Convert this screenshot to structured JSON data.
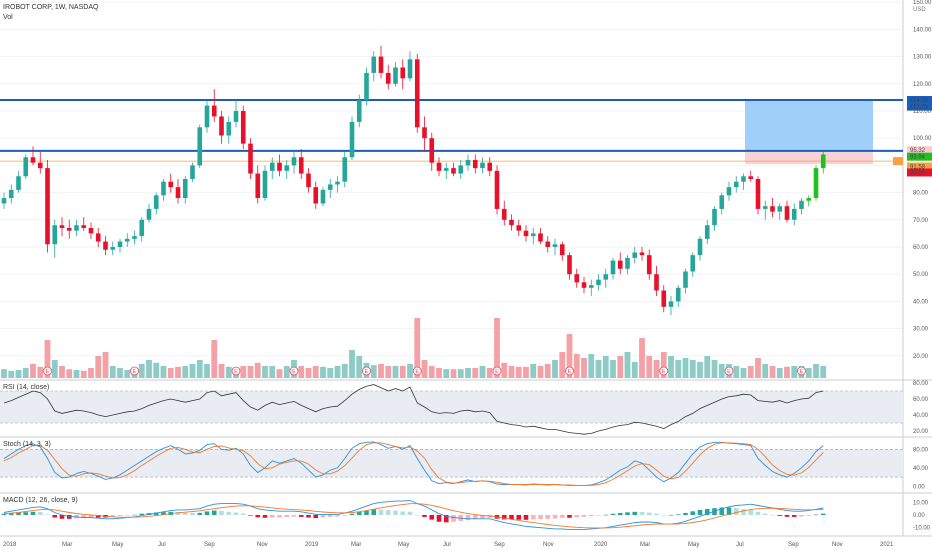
{
  "header": {
    "title": "IROBOT CORP, 1W, NASDAQ",
    "vol_label": "Vol",
    "rsi_label": "RSI (14, close)",
    "stoch_label": "Stoch (14, 3, 3)",
    "macd_label": "MACD (12, 26, close, 9)",
    "currency": "USD"
  },
  "colors": {
    "up": "#26a69a",
    "up_bright": "#21c021",
    "down": "#e8102a",
    "vol_up": "#8ccbc6",
    "vol_down": "#f3a1a6",
    "level_line": "#1a5eb8",
    "target_zone": "#8fc8f8",
    "stop_zone": "#f8cdd1",
    "earnings": "#e8455a"
  },
  "chart_data": [
    {
      "type": "candlestick",
      "title": "IROBOT CORP, 1W, NASDAQ",
      "ylabel": "USD",
      "ylim": [
        10,
        160
      ],
      "y_ticks": [
        20,
        30,
        40,
        50,
        60,
        70,
        80,
        90,
        100,
        110,
        120,
        130,
        140,
        150
      ],
      "x_ticks": [
        "2018",
        "Mar",
        "May",
        "Jul",
        "Sep",
        "Nov",
        "2019",
        "Mar",
        "May",
        "Jul",
        "Sep",
        "Nov",
        "2020",
        "Mar",
        "May",
        "Jul",
        "Sep",
        "Nov",
        "2021"
      ],
      "earnings_marker": "E",
      "horizontal_levels": [
        114.05,
        95.32
      ],
      "price_labels": [
        "114.05",
        "112.75",
        "95.32",
        "93.94",
        "91.58",
        "90.50"
      ],
      "ohlc": [
        [
          76,
          80,
          74,
          78
        ],
        [
          78,
          83,
          76,
          81
        ],
        [
          81,
          88,
          80,
          86
        ],
        [
          86,
          94,
          85,
          93
        ],
        [
          93,
          97,
          90,
          91
        ],
        [
          91,
          95,
          87,
          89
        ],
        [
          89,
          92,
          58,
          61
        ],
        [
          61,
          70,
          56,
          68
        ],
        [
          68,
          71,
          64,
          67
        ],
        [
          67,
          70,
          63,
          66
        ],
        [
          66,
          70,
          64,
          68
        ],
        [
          68,
          71,
          66,
          67
        ],
        [
          67,
          69,
          63,
          65
        ],
        [
          65,
          67,
          60,
          62
        ],
        [
          62,
          64,
          57,
          59
        ],
        [
          59,
          62,
          57,
          60
        ],
        [
          60,
          63,
          58,
          62
        ],
        [
          62,
          65,
          60,
          63
        ],
        [
          63,
          66,
          61,
          64
        ],
        [
          64,
          71,
          62,
          70
        ],
        [
          70,
          76,
          69,
          74
        ],
        [
          74,
          80,
          72,
          79
        ],
        [
          79,
          85,
          77,
          84
        ],
        [
          84,
          87,
          80,
          82
        ],
        [
          82,
          85,
          76,
          78
        ],
        [
          78,
          86,
          76,
          85
        ],
        [
          85,
          91,
          84,
          90
        ],
        [
          90,
          105,
          89,
          104
        ],
        [
          104,
          114,
          102,
          112
        ],
        [
          112,
          118,
          106,
          108
        ],
        [
          108,
          110,
          98,
          101
        ],
        [
          101,
          108,
          98,
          106
        ],
        [
          106,
          114,
          104,
          110
        ],
        [
          110,
          112,
          96,
          98
        ],
        [
          98,
          100,
          85,
          87
        ],
        [
          87,
          90,
          76,
          78
        ],
        [
          78,
          90,
          77,
          88
        ],
        [
          88,
          93,
          85,
          91
        ],
        [
          91,
          94,
          86,
          88
        ],
        [
          88,
          92,
          85,
          90
        ],
        [
          90,
          95,
          87,
          93
        ],
        [
          93,
          96,
          85,
          87
        ],
        [
          87,
          89,
          80,
          82
        ],
        [
          82,
          84,
          74,
          76
        ],
        [
          76,
          82,
          75,
          81
        ],
        [
          81,
          85,
          78,
          83
        ],
        [
          83,
          86,
          80,
          84
        ],
        [
          84,
          95,
          82,
          93
        ],
        [
          93,
          108,
          92,
          106
        ],
        [
          106,
          116,
          104,
          114
        ],
        [
          114,
          126,
          112,
          124
        ],
        [
          124,
          132,
          121,
          130
        ],
        [
          130,
          134,
          122,
          124
        ],
        [
          124,
          127,
          118,
          120
        ],
        [
          120,
          128,
          119,
          126
        ],
        [
          126,
          129,
          118,
          122
        ],
        [
          122,
          132,
          121,
          129
        ],
        [
          129,
          131,
          102,
          104
        ],
        [
          104,
          108,
          95,
          100
        ],
        [
          100,
          102,
          88,
          91
        ],
        [
          91,
          93,
          86,
          88
        ],
        [
          88,
          91,
          85,
          89
        ],
        [
          89,
          91,
          86,
          87
        ],
        [
          87,
          92,
          85,
          90
        ],
        [
          90,
          94,
          88,
          92
        ],
        [
          92,
          94,
          87,
          89
        ],
        [
          89,
          93,
          87,
          91
        ],
        [
          91,
          93,
          86,
          88
        ],
        [
          88,
          90,
          72,
          74
        ],
        [
          74,
          77,
          68,
          70
        ],
        [
          70,
          72,
          66,
          68
        ],
        [
          68,
          70,
          64,
          66
        ],
        [
          66,
          68,
          62,
          64
        ],
        [
          64,
          67,
          61,
          65
        ],
        [
          65,
          67,
          61,
          62
        ],
        [
          62,
          64,
          58,
          60
        ],
        [
          60,
          63,
          57,
          61
        ],
        [
          61,
          62,
          55,
          57
        ],
        [
          57,
          58,
          48,
          50
        ],
        [
          50,
          52,
          45,
          47
        ],
        [
          47,
          49,
          43,
          45
        ],
        [
          45,
          48,
          42,
          46
        ],
        [
          46,
          50,
          44,
          48
        ],
        [
          48,
          52,
          45,
          50
        ],
        [
          50,
          56,
          48,
          55
        ],
        [
          55,
          58,
          50,
          52
        ],
        [
          52,
          57,
          50,
          56
        ],
        [
          56,
          60,
          54,
          58
        ],
        [
          58,
          60,
          55,
          57
        ],
        [
          57,
          59,
          48,
          50
        ],
        [
          50,
          53,
          42,
          44
        ],
        [
          44,
          46,
          36,
          38
        ],
        [
          38,
          42,
          35,
          40
        ],
        [
          40,
          46,
          38,
          45
        ],
        [
          45,
          52,
          43,
          51
        ],
        [
          51,
          58,
          49,
          57
        ],
        [
          57,
          64,
          55,
          63
        ],
        [
          63,
          70,
          61,
          68
        ],
        [
          68,
          75,
          66,
          74
        ],
        [
          74,
          80,
          72,
          79
        ],
        [
          79,
          84,
          77,
          82
        ],
        [
          82,
          86,
          80,
          84
        ],
        [
          84,
          87,
          81,
          86
        ],
        [
          86,
          88,
          84,
          85
        ],
        [
          85,
          86,
          72,
          74
        ],
        [
          74,
          77,
          70,
          75
        ],
        [
          75,
          78,
          71,
          73
        ],
        [
          73,
          76,
          70,
          75
        ],
        [
          75,
          77,
          69,
          70
        ],
        [
          70,
          76,
          68,
          74
        ],
        [
          74,
          78,
          72,
          77
        ],
        [
          77,
          79,
          75,
          78
        ],
        [
          78,
          90,
          77,
          89
        ],
        [
          89,
          95,
          87,
          94
        ]
      ],
      "volume_ratio": [
        0.22,
        0.18,
        0.2,
        0.25,
        0.35,
        0.28,
        0.95,
        0.45,
        0.3,
        0.22,
        0.2,
        0.18,
        0.25,
        0.55,
        0.65,
        0.3,
        0.25,
        0.2,
        0.22,
        0.35,
        0.45,
        0.38,
        0.3,
        0.25,
        0.28,
        0.3,
        0.35,
        0.45,
        0.35,
        0.95,
        0.35,
        0.28,
        0.25,
        0.3,
        0.3,
        0.38,
        0.3,
        0.3,
        0.22,
        0.3,
        0.45,
        0.3,
        0.25,
        0.3,
        0.28,
        0.25,
        0.3,
        0.35,
        0.7,
        0.55,
        0.38,
        0.32,
        0.35,
        0.3,
        0.3,
        0.3,
        0.35,
        1.5,
        0.45,
        0.3,
        0.25,
        0.22,
        0.22,
        0.22,
        0.25,
        0.25,
        0.3,
        0.25,
        1.5,
        0.38,
        0.3,
        0.28,
        0.28,
        0.35,
        0.3,
        0.35,
        0.45,
        0.65,
        1.1,
        0.6,
        0.5,
        0.6,
        0.45,
        0.55,
        0.45,
        0.55,
        0.65,
        0.4,
        1.0,
        0.55,
        0.45,
        0.65,
        0.55,
        0.45,
        0.5,
        0.45,
        0.4,
        0.55,
        0.45,
        0.35,
        0.35,
        0.3,
        0.25,
        0.3,
        0.5,
        0.35,
        0.3,
        0.25,
        0.28,
        0.3,
        0.3,
        0.25,
        0.35,
        0.3
      ],
      "earnings_index": [
        6,
        18,
        32,
        40,
        50,
        57,
        68,
        78,
        91,
        100,
        110
      ]
    },
    {
      "type": "line",
      "title": "RSI (14, close)",
      "ylim": [
        15,
        80
      ],
      "y_ticks": [
        "80.00",
        "60.00",
        "40.00",
        "20.00"
      ],
      "bands": [
        70,
        30
      ],
      "values": [
        55,
        58,
        62,
        66,
        70,
        68,
        60,
        45,
        42,
        44,
        46,
        45,
        43,
        40,
        38,
        40,
        42,
        44,
        45,
        48,
        52,
        55,
        58,
        60,
        58,
        56,
        58,
        60,
        68,
        70,
        64,
        66,
        68,
        58,
        50,
        46,
        52,
        56,
        53,
        55,
        57,
        52,
        48,
        44,
        48,
        50,
        51,
        58,
        66,
        72,
        76,
        78,
        74,
        70,
        73,
        70,
        75,
        55,
        50,
        44,
        42,
        43,
        42,
        45,
        46,
        44,
        45,
        43,
        32,
        30,
        28,
        27,
        25,
        26,
        24,
        22,
        22,
        20,
        18,
        17,
        16,
        17,
        20,
        22,
        25,
        27,
        28,
        31,
        30,
        28,
        26,
        23,
        28,
        32,
        38,
        42,
        48,
        52,
        56,
        60,
        63,
        64,
        66,
        65,
        58,
        57,
        56,
        58,
        55,
        58,
        60,
        61,
        68,
        70
      ]
    },
    {
      "type": "line",
      "title": "Stoch (14, 3, 3)",
      "ylim": [
        -10,
        100
      ],
      "y_ticks": [
        "80.00",
        "40.00",
        "0.00"
      ],
      "bands": [
        80,
        20
      ],
      "k_values": [
        60,
        70,
        80,
        88,
        92,
        85,
        60,
        30,
        18,
        20,
        28,
        32,
        28,
        22,
        15,
        18,
        25,
        35,
        45,
        55,
        65,
        75,
        82,
        88,
        80,
        70,
        72,
        78,
        90,
        92,
        80,
        78,
        82,
        70,
        45,
        30,
        40,
        55,
        50,
        55,
        60,
        50,
        35,
        20,
        25,
        35,
        40,
        60,
        82,
        92,
        95,
        96,
        90,
        82,
        86,
        80,
        88,
        60,
        35,
        12,
        6,
        8,
        6,
        10,
        14,
        10,
        12,
        10,
        5,
        4,
        4,
        4,
        3,
        5,
        4,
        3,
        4,
        3,
        2,
        2,
        2,
        3,
        8,
        14,
        24,
        35,
        42,
        55,
        50,
        35,
        20,
        10,
        18,
        30,
        50,
        70,
        85,
        92,
        95,
        95,
        93,
        92,
        90,
        88,
        60,
        45,
        32,
        25,
        20,
        28,
        40,
        55,
        75,
        88
      ],
      "d_values": [
        55,
        62,
        72,
        80,
        88,
        88,
        78,
        58,
        38,
        24,
        22,
        27,
        29,
        27,
        22,
        18,
        19,
        25,
        34,
        45,
        55,
        65,
        74,
        82,
        84,
        80,
        74,
        73,
        80,
        86,
        87,
        83,
        80,
        77,
        66,
        49,
        38,
        40,
        48,
        52,
        55,
        55,
        48,
        35,
        27,
        27,
        33,
        45,
        61,
        78,
        90,
        94,
        94,
        90,
        86,
        83,
        85,
        76,
        61,
        36,
        18,
        9,
        7,
        8,
        10,
        11,
        12,
        11,
        9,
        6,
        4,
        4,
        4,
        4,
        4,
        4,
        4,
        3,
        3,
        2,
        2,
        2,
        4,
        8,
        15,
        24,
        34,
        44,
        49,
        47,
        35,
        22,
        16,
        19,
        33,
        50,
        68,
        82,
        91,
        94,
        94,
        93,
        92,
        90,
        80,
        64,
        46,
        34,
        26,
        24,
        29,
        41,
        57,
        73
      ]
    },
    {
      "type": "line",
      "title": "MACD (12, 26, close, 9)",
      "ylim": [
        -15,
        15
      ],
      "y_ticks": [
        "10.00",
        "0.00",
        "-10.00"
      ],
      "macd": [
        2,
        3,
        4,
        5,
        6,
        6.5,
        5,
        2,
        0,
        -1,
        -1.5,
        -2,
        -2,
        -2.5,
        -3,
        -3,
        -2.5,
        -2,
        -1.5,
        -0.5,
        0.5,
        1.5,
        2.5,
        3.5,
        4,
        4,
        4.5,
        5,
        7,
        8.5,
        9,
        9,
        9,
        8.5,
        7,
        5,
        4,
        3.5,
        3,
        3,
        3,
        2.5,
        1.5,
        0.5,
        0.5,
        0.5,
        0.5,
        1.5,
        3,
        5,
        7,
        9,
        10,
        10.5,
        11,
        11,
        11.5,
        9,
        7,
        4,
        1,
        -1,
        -2,
        -2.5,
        -3,
        -3,
        -3,
        -3,
        -4.5,
        -6,
        -7,
        -8,
        -9,
        -9.5,
        -10,
        -10.5,
        -11,
        -11,
        -11.5,
        -11.5,
        -11.5,
        -11,
        -10.5,
        -10,
        -9,
        -8,
        -7,
        -6,
        -5.5,
        -5.5,
        -6,
        -7,
        -7,
        -6.5,
        -5,
        -3,
        -1,
        1,
        3,
        5,
        6.5,
        7.5,
        8,
        8.5,
        7.5,
        6.5,
        5.5,
        4.5,
        3.5,
        3,
        3,
        3.5,
        4.5,
        5.5
      ],
      "signal": [
        1,
        1.5,
        2,
        2.8,
        3.5,
        4.2,
        4.5,
        4,
        3,
        2,
        1.2,
        0.5,
        0,
        -0.5,
        -1,
        -1.5,
        -1.7,
        -1.8,
        -1.7,
        -1.5,
        -1,
        -0.5,
        0.2,
        1,
        1.7,
        2.2,
        2.8,
        3.3,
        4.2,
        5,
        5.8,
        6.5,
        7,
        7.3,
        7.3,
        6.8,
        6.2,
        5.6,
        5,
        4.6,
        4.3,
        4,
        3.5,
        2.9,
        2.4,
        2,
        1.7,
        1.7,
        2,
        2.6,
        3.5,
        4.6,
        5.7,
        6.6,
        7.5,
        8.2,
        8.9,
        8.9,
        8.5,
        7.6,
        6.3,
        4.8,
        3.4,
        2.2,
        1.1,
        0.3,
        -0.4,
        -0.9,
        -1.6,
        -2.5,
        -3.4,
        -4.3,
        -5.2,
        -6,
        -6.8,
        -7.5,
        -8.2,
        -8.8,
        -9.3,
        -9.7,
        -10,
        -10.2,
        -10.2,
        -10.2,
        -10,
        -9.6,
        -9.1,
        -8.5,
        -7.9,
        -7.4,
        -7.1,
        -7.1,
        -7.1,
        -7,
        -6.6,
        -5.9,
        -5,
        -3.8,
        -2.4,
        -0.9,
        0.6,
        2,
        3.2,
        4.3,
        5,
        5.3,
        5.4,
        5.2,
        4.9,
        4.5,
        4.2,
        4.1,
        4.2,
        4.4
      ]
    }
  ]
}
